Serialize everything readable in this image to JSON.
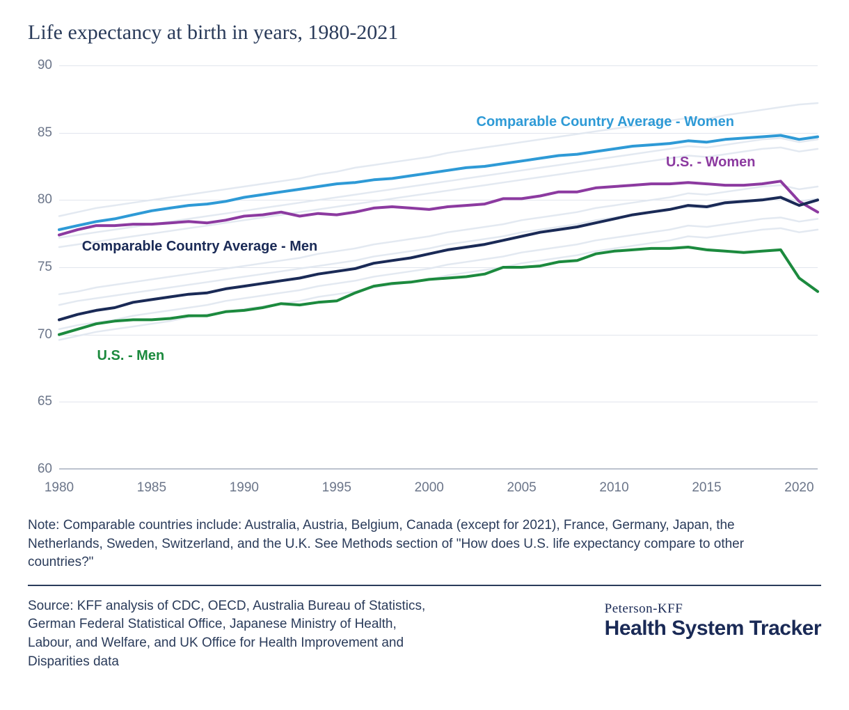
{
  "title": "Life expectancy at birth in years, 1980-2021",
  "chart": {
    "type": "line",
    "xlim": [
      1980,
      2021
    ],
    "ylim": [
      60,
      90
    ],
    "ytick_step": 5,
    "yticks": [
      60,
      65,
      70,
      75,
      80,
      85,
      90
    ],
    "xticks": [
      1980,
      1985,
      1990,
      1995,
      2000,
      2005,
      2010,
      2015,
      2020
    ],
    "grid_color": "#e1e5ed",
    "axis_color": "#9aa2b3",
    "tick_label_color": "#6b7589",
    "tick_label_fontsize": 19,
    "background_color": "#ffffff",
    "background_line_color": "#e0e7f0",
    "background_line_width": 2.5,
    "series": [
      {
        "id": "comp_women",
        "label": "Comparable Country Average - Women",
        "color": "#2e9ad6",
        "line_width": 4,
        "label_pos": {
          "x_pct": 55,
          "y_pct": 12
        },
        "years": [
          1980,
          1981,
          1982,
          1983,
          1984,
          1985,
          1986,
          1987,
          1988,
          1989,
          1990,
          1991,
          1992,
          1993,
          1994,
          1995,
          1996,
          1997,
          1998,
          1999,
          2000,
          2001,
          2002,
          2003,
          2004,
          2005,
          2006,
          2007,
          2008,
          2009,
          2010,
          2011,
          2012,
          2013,
          2014,
          2015,
          2016,
          2017,
          2018,
          2019,
          2020,
          2021
        ],
        "values": [
          77.8,
          78.1,
          78.4,
          78.6,
          78.9,
          79.2,
          79.4,
          79.6,
          79.7,
          79.9,
          80.2,
          80.4,
          80.6,
          80.8,
          81.0,
          81.2,
          81.3,
          81.5,
          81.6,
          81.8,
          82.0,
          82.2,
          82.4,
          82.5,
          82.7,
          82.9,
          83.1,
          83.3,
          83.4,
          83.6,
          83.8,
          84.0,
          84.1,
          84.2,
          84.4,
          84.3,
          84.5,
          84.6,
          84.7,
          84.8,
          84.5,
          84.7
        ]
      },
      {
        "id": "us_women",
        "label": "U.S. - Women",
        "color": "#8c3aa0",
        "line_width": 4,
        "label_pos": {
          "x_pct": 80,
          "y_pct": 22
        },
        "years": [
          1980,
          1981,
          1982,
          1983,
          1984,
          1985,
          1986,
          1987,
          1988,
          1989,
          1990,
          1991,
          1992,
          1993,
          1994,
          1995,
          1996,
          1997,
          1998,
          1999,
          2000,
          2001,
          2002,
          2003,
          2004,
          2005,
          2006,
          2007,
          2008,
          2009,
          2010,
          2011,
          2012,
          2013,
          2014,
          2015,
          2016,
          2017,
          2018,
          2019,
          2020,
          2021
        ],
        "values": [
          77.4,
          77.8,
          78.1,
          78.1,
          78.2,
          78.2,
          78.3,
          78.4,
          78.3,
          78.5,
          78.8,
          78.9,
          79.1,
          78.8,
          79.0,
          78.9,
          79.1,
          79.4,
          79.5,
          79.4,
          79.3,
          79.5,
          79.6,
          79.7,
          80.1,
          80.1,
          80.3,
          80.6,
          80.6,
          80.9,
          81.0,
          81.1,
          81.2,
          81.2,
          81.3,
          81.2,
          81.1,
          81.1,
          81.2,
          81.4,
          79.9,
          79.1
        ]
      },
      {
        "id": "comp_men",
        "label": "Comparable Country Average - Men",
        "color": "#1a2a56",
        "line_width": 4,
        "label_pos": {
          "x_pct": 3,
          "y_pct": 43
        },
        "years": [
          1980,
          1981,
          1982,
          1983,
          1984,
          1985,
          1986,
          1987,
          1988,
          1989,
          1990,
          1991,
          1992,
          1993,
          1994,
          1995,
          1996,
          1997,
          1998,
          1999,
          2000,
          2001,
          2002,
          2003,
          2004,
          2005,
          2006,
          2007,
          2008,
          2009,
          2010,
          2011,
          2012,
          2013,
          2014,
          2015,
          2016,
          2017,
          2018,
          2019,
          2020,
          2021
        ],
        "values": [
          71.1,
          71.5,
          71.8,
          72.0,
          72.4,
          72.6,
          72.8,
          73.0,
          73.1,
          73.4,
          73.6,
          73.8,
          74.0,
          74.2,
          74.5,
          74.7,
          74.9,
          75.3,
          75.5,
          75.7,
          76.0,
          76.3,
          76.5,
          76.7,
          77.0,
          77.3,
          77.6,
          77.8,
          78.0,
          78.3,
          78.6,
          78.9,
          79.1,
          79.3,
          79.6,
          79.5,
          79.8,
          79.9,
          80.0,
          80.2,
          79.6,
          80.0
        ]
      },
      {
        "id": "us_men",
        "label": "U.S. - Men",
        "color": "#1c8a3e",
        "line_width": 4,
        "label_pos": {
          "x_pct": 5,
          "y_pct": 70
        },
        "years": [
          1980,
          1981,
          1982,
          1983,
          1984,
          1985,
          1986,
          1987,
          1988,
          1989,
          1990,
          1991,
          1992,
          1993,
          1994,
          1995,
          1996,
          1997,
          1998,
          1999,
          2000,
          2001,
          2002,
          2003,
          2004,
          2005,
          2006,
          2007,
          2008,
          2009,
          2010,
          2011,
          2012,
          2013,
          2014,
          2015,
          2016,
          2017,
          2018,
          2019,
          2020,
          2021
        ],
        "values": [
          70.0,
          70.4,
          70.8,
          71.0,
          71.1,
          71.1,
          71.2,
          71.4,
          71.4,
          71.7,
          71.8,
          72.0,
          72.3,
          72.2,
          72.4,
          72.5,
          73.1,
          73.6,
          73.8,
          73.9,
          74.1,
          74.2,
          74.3,
          74.5,
          75.0,
          75.0,
          75.1,
          75.4,
          75.5,
          76.0,
          76.2,
          76.3,
          76.4,
          76.4,
          76.5,
          76.3,
          76.2,
          76.1,
          76.2,
          76.3,
          74.2,
          73.2
        ]
      }
    ],
    "background_series": [
      [
        78.8,
        79.1,
        79.4,
        79.6,
        79.8,
        80.0,
        80.2,
        80.4,
        80.6,
        80.8,
        81.0,
        81.2,
        81.4,
        81.6,
        81.9,
        82.1,
        82.4,
        82.6,
        82.8,
        83.0,
        83.2,
        83.5,
        83.7,
        83.9,
        84.1,
        84.3,
        84.5,
        84.7,
        84.9,
        85.1,
        85.3,
        85.5,
        85.7,
        85.9,
        86.1,
        86.0,
        86.3,
        86.5,
        86.7,
        86.9,
        87.1,
        87.2
      ],
      [
        77.2,
        77.4,
        77.6,
        77.8,
        78.0,
        78.2,
        78.4,
        78.6,
        78.8,
        79.0,
        79.2,
        79.4,
        79.6,
        79.8,
        80.0,
        80.2,
        80.4,
        80.6,
        80.8,
        81.0,
        81.2,
        81.4,
        81.6,
        81.8,
        82.0,
        82.2,
        82.4,
        82.6,
        82.8,
        83.0,
        83.2,
        83.4,
        83.6,
        83.8,
        84.0,
        83.9,
        84.1,
        84.3,
        84.5,
        84.6,
        84.3,
        84.5
      ],
      [
        76.5,
        76.7,
        76.9,
        77.1,
        77.3,
        77.5,
        77.7,
        77.9,
        78.1,
        78.3,
        78.5,
        78.7,
        78.9,
        79.1,
        79.3,
        79.5,
        79.7,
        79.9,
        80.1,
        80.3,
        80.5,
        80.7,
        80.9,
        81.1,
        81.3,
        81.5,
        81.7,
        81.9,
        82.1,
        82.3,
        82.5,
        82.7,
        82.9,
        83.1,
        83.3,
        83.2,
        83.4,
        83.6,
        83.8,
        83.9,
        83.6,
        83.8
      ],
      [
        73.0,
        73.2,
        73.5,
        73.7,
        73.9,
        74.1,
        74.3,
        74.5,
        74.7,
        74.9,
        75.1,
        75.3,
        75.5,
        75.7,
        76.0,
        76.2,
        76.4,
        76.7,
        76.9,
        77.1,
        77.3,
        77.6,
        77.8,
        78.0,
        78.2,
        78.5,
        78.7,
        78.9,
        79.1,
        79.4,
        79.6,
        79.8,
        80.0,
        80.2,
        80.5,
        80.4,
        80.6,
        80.8,
        81.0,
        81.1,
        80.8,
        81.0
      ],
      [
        72.2,
        72.5,
        72.7,
        72.9,
        73.1,
        73.3,
        73.5,
        73.7,
        73.9,
        74.1,
        74.3,
        74.5,
        74.7,
        74.9,
        75.1,
        75.3,
        75.5,
        75.8,
        76.0,
        76.2,
        76.4,
        76.7,
        76.9,
        77.1,
        77.3,
        77.6,
        77.8,
        78.0,
        78.2,
        78.5,
        78.7,
        78.9,
        79.1,
        79.3,
        79.5,
        79.4,
        79.7,
        79.9,
        80.1,
        80.2,
        79.9,
        80.1
      ],
      [
        70.4,
        70.7,
        70.9,
        71.1,
        71.4,
        71.6,
        71.8,
        72.0,
        72.2,
        72.5,
        72.7,
        72.9,
        73.1,
        73.3,
        73.6,
        73.8,
        74.0,
        74.3,
        74.5,
        74.7,
        74.9,
        75.2,
        75.4,
        75.6,
        75.8,
        76.1,
        76.3,
        76.5,
        76.7,
        77.0,
        77.2,
        77.4,
        77.6,
        77.8,
        78.1,
        78.0,
        78.2,
        78.4,
        78.6,
        78.7,
        78.4,
        78.6
      ],
      [
        69.6,
        69.9,
        70.2,
        70.4,
        70.6,
        70.8,
        71.0,
        71.3,
        71.5,
        71.7,
        71.9,
        72.1,
        72.3,
        72.5,
        72.8,
        73.0,
        73.2,
        73.5,
        73.7,
        73.9,
        74.1,
        74.4,
        74.6,
        74.8,
        75.0,
        75.3,
        75.5,
        75.7,
        75.9,
        76.2,
        76.4,
        76.6,
        76.8,
        77.0,
        77.3,
        77.2,
        77.4,
        77.6,
        77.8,
        77.9,
        77.6,
        77.8
      ]
    ]
  },
  "note": "Note: Comparable countries include: Australia, Austria, Belgium, Canada (except for 2021), France, Germany, Japan, the Netherlands, Sweden, Switzerland, and the U.K. See Methods section of \"How does U.S. life expectancy compare to other countries?\"",
  "source": "Source: KFF analysis of CDC, OECD, Australia Bureau of Statistics, German Federal Statistical Office, Japanese Ministry of Health, Labour, and Welfare, and UK Office for Health Improvement and Disparities data",
  "brand_small": "Peterson-KFF",
  "brand_large": "Health System Tracker"
}
